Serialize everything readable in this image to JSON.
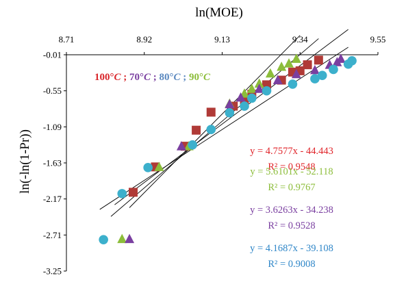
{
  "chart_data": {
    "type": "scatter",
    "xlabel": "ln(MOE)",
    "ylabel": "ln(-ln(1-Pr))",
    "x_axis_position": "top",
    "xlim": [
      8.71,
      9.55
    ],
    "ylim": [
      -3.25,
      -0.01
    ],
    "x_ticks": [
      "8.71",
      "8.92",
      "9.13",
      "9.34",
      "9.55"
    ],
    "y_ticks": [
      "-0.01",
      "-0.55",
      "-1.09",
      "-1.63",
      "-2.17",
      "-2.71",
      "-3.25"
    ],
    "grid": false,
    "legend": {
      "placement": "top-left",
      "entries": [
        {
          "text": "100°",
          "italic": "C",
          "sep": " ;",
          "color": "#d9262b"
        },
        {
          "text": " 70°",
          "italic": "C",
          "sep": " ;",
          "color": "#7a3fa0"
        },
        {
          "text": " 80°",
          "italic": "C",
          "sep": " ;",
          "color": "#5a88bf"
        },
        {
          "text": " 90°",
          "italic": "C",
          "sep": "",
          "color": "#8cbd3a"
        }
      ]
    },
    "series": [
      {
        "marker": "square",
        "color": "#b03a37",
        "equation": "y = 4.7577x - 44.443",
        "r2": "R² = 0.9548",
        "label_color": "#e0242a",
        "slope": 4.7577,
        "intercept": -44.443,
        "line_x": [
          8.83,
          9.39
        ],
        "points": [
          [
            8.89,
            -2.07
          ],
          [
            8.95,
            -1.69
          ],
          [
            9.03,
            -1.38
          ],
          [
            9.06,
            -1.14
          ],
          [
            9.1,
            -0.87
          ],
          [
            9.16,
            -0.78
          ],
          [
            9.19,
            -0.71
          ],
          [
            9.21,
            -0.6
          ],
          [
            9.25,
            -0.46
          ],
          [
            9.29,
            -0.39
          ],
          [
            9.32,
            -0.27
          ],
          [
            9.34,
            -0.25
          ],
          [
            9.36,
            -0.16
          ],
          [
            9.39,
            -0.09
          ]
        ]
      },
      {
        "marker": "triangle",
        "color": "#8cbd3a",
        "equation": "y = 5.6101x - 52.118",
        "r2": "R² = 0.9767",
        "label_color": "#8cbd3a",
        "slope": 5.6101,
        "intercept": -52.118,
        "line_x": [
          8.88,
          9.34
        ],
        "points": [
          [
            8.86,
            -2.77
          ],
          [
            8.96,
            -1.69
          ],
          [
            9.04,
            -1.38
          ],
          [
            9.15,
            -0.74
          ],
          [
            9.19,
            -0.59
          ],
          [
            9.21,
            -0.52
          ],
          [
            9.23,
            -0.44
          ],
          [
            9.26,
            -0.29
          ],
          [
            9.29,
            -0.19
          ],
          [
            9.31,
            -0.14
          ],
          [
            9.33,
            -0.07
          ]
        ]
      },
      {
        "marker": "triangle",
        "color": "#7a3fa0",
        "equation": "y = 3.6263x - 34.238",
        "r2": "R² = 0.9528",
        "label_color": "#7a3fa0",
        "slope": 3.6263,
        "intercept": -34.238,
        "line_x": [
          8.8,
          9.47
        ],
        "points": [
          [
            8.88,
            -2.77
          ],
          [
            9.02,
            -1.38
          ],
          [
            9.15,
            -0.75
          ],
          [
            9.18,
            -0.65
          ],
          [
            9.23,
            -0.52
          ],
          [
            9.28,
            -0.39
          ],
          [
            9.33,
            -0.3
          ],
          [
            9.38,
            -0.24
          ],
          [
            9.42,
            -0.16
          ],
          [
            9.44,
            -0.12
          ],
          [
            9.45,
            -0.07
          ]
        ]
      },
      {
        "marker": "circle",
        "color": "#3cb0cc",
        "equation": "y = 4.1687x - 39.108",
        "r2": "R² = 0.9008",
        "label_color": "#2e86c8",
        "slope": 4.1687,
        "intercept": -39.108,
        "line_x": [
          8.84,
          9.47
        ],
        "points": [
          [
            8.81,
            -2.78
          ],
          [
            8.86,
            -2.09
          ],
          [
            8.93,
            -1.7
          ],
          [
            9.05,
            -1.36
          ],
          [
            9.1,
            -1.13
          ],
          [
            9.15,
            -0.88
          ],
          [
            9.19,
            -0.78
          ],
          [
            9.21,
            -0.66
          ],
          [
            9.25,
            -0.55
          ],
          [
            9.32,
            -0.45
          ],
          [
            9.38,
            -0.37
          ],
          [
            9.4,
            -0.32
          ],
          [
            9.43,
            -0.23
          ],
          [
            9.47,
            -0.15
          ],
          [
            9.48,
            -0.1
          ]
        ]
      }
    ]
  }
}
